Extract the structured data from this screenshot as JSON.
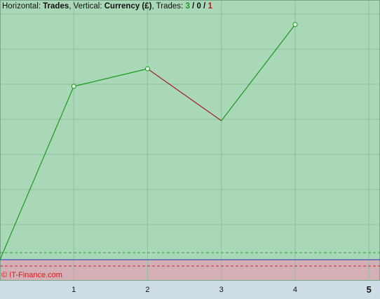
{
  "header": {
    "prefix": "Horizontal: ",
    "horizontal": "Trades",
    "mid": ", Vertical: ",
    "vertical": "Currency (£)",
    "trades_label": ", Trades: ",
    "wins": "3",
    "sep1": " / ",
    "flats": "0",
    "sep2": " / ",
    "losses": "1"
  },
  "copyright": "© IT-Finance.com",
  "colors": {
    "profit_zone": "#a9d8b8",
    "loss_zone": "#d4b0b6",
    "up_segment": "#1a9a1a",
    "down_segment": "#a02020",
    "baseline": "#2233bb",
    "grid": "#8fbf9d",
    "axis_strip": "#cfdde7"
  },
  "chart_data": {
    "type": "line",
    "title": "",
    "xlabel": "Trades",
    "ylabel": "Currency (£)",
    "x_ticks": [
      "1",
      "2",
      "3",
      "4",
      "5"
    ],
    "xlim": [
      0,
      5.15
    ],
    "ylim": [
      -30,
      370
    ],
    "grid": true,
    "baseline": 0,
    "upper_dashed": 10,
    "lower_dashed": -9,
    "series": [
      {
        "x": [
          0,
          1,
          2,
          3,
          4
        ],
        "y": [
          0,
          247,
          272,
          198,
          335
        ]
      }
    ]
  }
}
